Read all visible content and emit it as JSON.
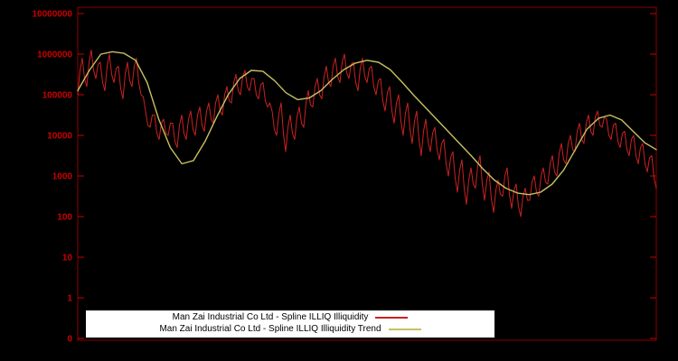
{
  "chart_data": {
    "type": "line",
    "title": "",
    "xlabel": "",
    "ylabel": "",
    "yscale": "log",
    "ylim_log10": [
      0,
      7
    ],
    "grid": false,
    "legend_position": "bottom-center",
    "background": "#000000",
    "axis_color": "#8b0000",
    "tick_label_color": "#cc0000",
    "xticks": [],
    "yticks": [
      {
        "label": "10000000",
        "log10": 7
      },
      {
        "label": "1000000",
        "log10": 6
      },
      {
        "label": "100000",
        "log10": 5
      },
      {
        "label": "10000",
        "log10": 4
      },
      {
        "label": "1000",
        "log10": 3
      },
      {
        "label": "100",
        "log10": 2
      },
      {
        "label": "10",
        "log10": 1
      },
      {
        "label": "1",
        "log10": 0
      },
      {
        "label": "0",
        "log10": null
      }
    ],
    "series": [
      {
        "name": "Man Zai Industrial Co Ltd - Spline ILLIQ Illiquidity",
        "color": "#cc2222",
        "render_jitter_log10": 0.15,
        "points_log10": [
          5.0,
          5.9,
          5.2,
          6.1,
          5.4,
          5.8,
          5.1,
          6.0,
          5.3,
          5.7,
          4.9,
          5.8,
          5.2,
          5.9,
          5.0,
          4.6,
          4.2,
          4.5,
          3.9,
          4.4,
          4.0,
          4.3,
          3.7,
          4.5,
          3.9,
          4.6,
          4.0,
          4.7,
          4.1,
          4.8,
          4.3,
          5.0,
          4.5,
          5.2,
          4.8,
          5.5,
          5.0,
          5.6,
          5.1,
          5.4,
          4.9,
          5.3,
          4.7,
          4.6,
          4.0,
          4.8,
          3.6,
          4.5,
          3.9,
          4.7,
          4.2,
          5.1,
          4.7,
          5.4,
          4.9,
          5.7,
          5.2,
          5.9,
          5.3,
          6.0,
          5.4,
          5.8,
          5.1,
          5.9,
          5.3,
          5.7,
          5.0,
          5.4,
          4.6,
          5.2,
          4.3,
          5.0,
          4.0,
          4.8,
          3.8,
          4.6,
          3.5,
          4.4,
          3.6,
          4.2,
          3.4,
          3.9,
          3.0,
          3.6,
          2.6,
          3.4,
          2.3,
          3.2,
          2.7,
          3.5,
          2.4,
          3.1,
          2.1,
          2.9,
          2.5,
          3.2,
          2.2,
          2.8,
          2.0,
          2.7,
          2.4,
          3.0,
          2.5,
          3.2,
          2.8,
          3.5,
          3.0,
          3.8,
          3.3,
          4.0,
          3.6,
          4.3,
          3.8,
          4.5,
          4.0,
          4.6,
          4.2,
          4.4,
          3.9,
          4.3,
          3.7,
          4.1,
          3.5,
          4.0,
          3.3,
          3.8,
          3.1,
          3.5,
          2.7
        ]
      },
      {
        "name": "Man Zai Industrial Co Ltd - Spline ILLIQ Illiquidity Trend",
        "color": "#c8c060",
        "render_jitter_log10": 0,
        "points_log10": [
          5.1,
          5.6,
          6.0,
          6.06,
          6.02,
          5.85,
          5.3,
          4.4,
          3.7,
          3.3,
          3.38,
          3.85,
          4.45,
          5.0,
          5.4,
          5.6,
          5.58,
          5.35,
          5.05,
          4.88,
          4.92,
          5.1,
          5.38,
          5.62,
          5.78,
          5.85,
          5.8,
          5.62,
          5.32,
          5.0,
          4.7,
          4.4,
          4.1,
          3.8,
          3.5,
          3.18,
          2.9,
          2.7,
          2.58,
          2.54,
          2.6,
          2.8,
          3.15,
          3.65,
          4.15,
          4.42,
          4.5,
          4.38,
          4.1,
          3.82,
          3.65
        ]
      }
    ]
  },
  "legend": {
    "items": [
      {
        "label": "Man Zai Industrial Co Ltd - Spline ILLIQ Illiquidity"
      },
      {
        "label": "Man Zai Industrial Co Ltd - Spline ILLIQ Illiquidity Trend"
      }
    ]
  }
}
